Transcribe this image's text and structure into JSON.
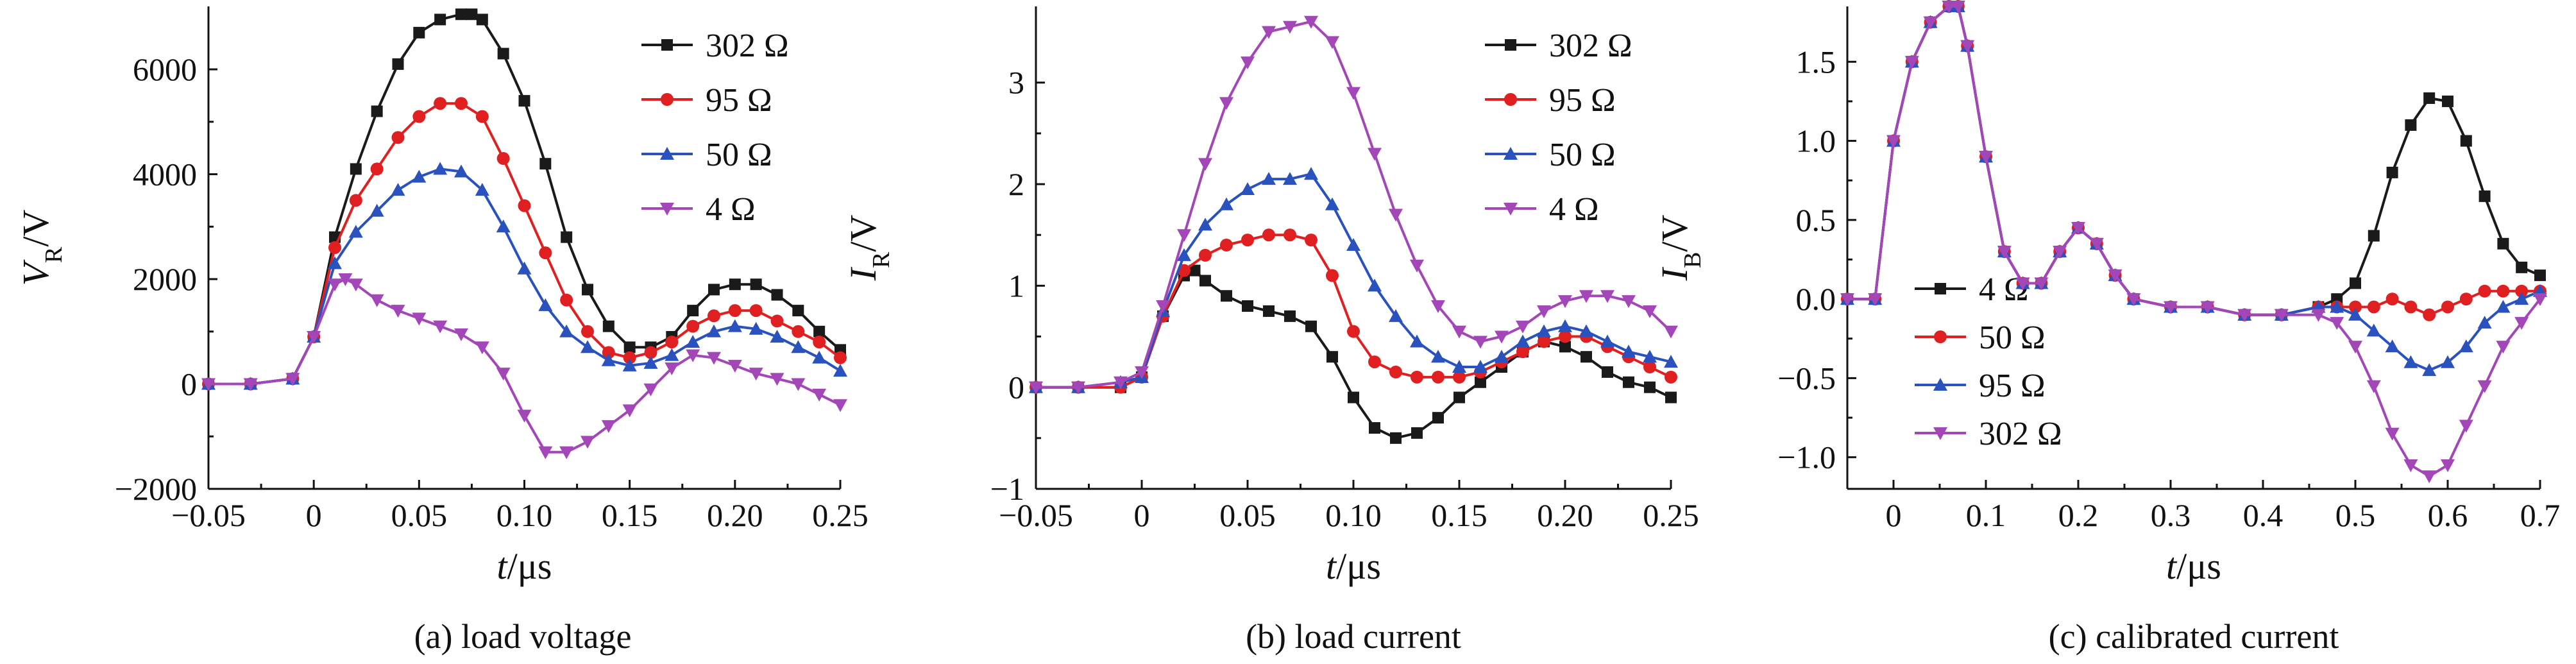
{
  "chart_data": [
    {
      "type": "line",
      "caption": "(a) load voltage",
      "xlabel_main": "t",
      "xlabel_unit": "/μs",
      "ylabel_main": "V",
      "ylabel_sub": "R",
      "ylabel_unit": "/V",
      "xlim": [
        -0.05,
        0.25
      ],
      "ylim": [
        -2000,
        7200
      ],
      "xticks": [
        -0.05,
        0,
        0.05,
        0.1,
        0.15,
        0.2,
        0.25
      ],
      "xtick_labels": [
        "−0.05",
        "0",
        "0.05",
        "0.10",
        "0.15",
        "0.20",
        "0.25"
      ],
      "yticks": [
        -2000,
        0,
        2000,
        4000,
        6000
      ],
      "ytick_labels": [
        "−2000",
        "0",
        "2000",
        "4000",
        "6000"
      ],
      "legend_position": "top-right",
      "series": [
        {
          "name": "302 Ω",
          "color": "#1a1a1a",
          "marker": "square",
          "x": [
            -0.05,
            -0.03,
            -0.01,
            0,
            0.01,
            0.02,
            0.03,
            0.04,
            0.05,
            0.06,
            0.07,
            0.075,
            0.08,
            0.09,
            0.1,
            0.11,
            0.12,
            0.13,
            0.14,
            0.15,
            0.16,
            0.17,
            0.18,
            0.19,
            0.2,
            0.21,
            0.22,
            0.23,
            0.24,
            0.25
          ],
          "y": [
            0,
            0,
            100,
            900,
            2800,
            4100,
            5200,
            6100,
            6700,
            6950,
            7050,
            7050,
            6950,
            6300,
            5400,
            4200,
            2800,
            1800,
            1100,
            700,
            700,
            900,
            1400,
            1800,
            1900,
            1900,
            1700,
            1400,
            1000,
            650
          ]
        },
        {
          "name": "95 Ω",
          "color": "#e02020",
          "marker": "circle",
          "x": [
            -0.05,
            -0.03,
            -0.01,
            0,
            0.01,
            0.02,
            0.03,
            0.04,
            0.05,
            0.06,
            0.07,
            0.08,
            0.09,
            0.1,
            0.11,
            0.12,
            0.13,
            0.14,
            0.15,
            0.16,
            0.17,
            0.18,
            0.19,
            0.2,
            0.21,
            0.22,
            0.23,
            0.24,
            0.25
          ],
          "y": [
            0,
            0,
            100,
            900,
            2600,
            3500,
            4100,
            4700,
            5100,
            5350,
            5350,
            5100,
            4300,
            3400,
            2500,
            1600,
            1000,
            600,
            500,
            600,
            800,
            1100,
            1300,
            1400,
            1400,
            1200,
            1000,
            800,
            500
          ]
        },
        {
          "name": "50 Ω",
          "color": "#2a52be",
          "marker": "triangle-up",
          "x": [
            -0.05,
            -0.03,
            -0.01,
            0,
            0.01,
            0.02,
            0.03,
            0.04,
            0.05,
            0.06,
            0.07,
            0.08,
            0.09,
            0.1,
            0.11,
            0.12,
            0.13,
            0.14,
            0.15,
            0.16,
            0.17,
            0.18,
            0.19,
            0.2,
            0.21,
            0.22,
            0.23,
            0.24,
            0.25
          ],
          "y": [
            0,
            0,
            100,
            900,
            2300,
            2900,
            3300,
            3700,
            3950,
            4100,
            4050,
            3700,
            3000,
            2200,
            1500,
            1000,
            700,
            450,
            350,
            400,
            550,
            800,
            1000,
            1100,
            1050,
            900,
            700,
            500,
            250
          ]
        },
        {
          "name": "4 Ω",
          "color": "#a347b8",
          "marker": "triangle-down",
          "x": [
            -0.05,
            -0.03,
            -0.01,
            0,
            0.01,
            0.015,
            0.02,
            0.03,
            0.04,
            0.05,
            0.06,
            0.07,
            0.08,
            0.09,
            0.1,
            0.11,
            0.12,
            0.13,
            0.14,
            0.15,
            0.16,
            0.17,
            0.18,
            0.19,
            0.2,
            0.21,
            0.22,
            0.23,
            0.24,
            0.25
          ],
          "y": [
            0,
            0,
            100,
            900,
            1900,
            2000,
            1900,
            1600,
            1400,
            1250,
            1100,
            950,
            700,
            200,
            -600,
            -1300,
            -1300,
            -1100,
            -800,
            -500,
            -100,
            300,
            550,
            500,
            350,
            200,
            100,
            0,
            -200,
            -400
          ]
        }
      ]
    },
    {
      "type": "line",
      "caption": "(b) load current",
      "xlabel_main": "t",
      "xlabel_unit": "/μs",
      "ylabel_main": "I",
      "ylabel_sub": "R",
      "ylabel_unit": "/V",
      "xlim": [
        -0.05,
        0.25
      ],
      "ylim": [
        -1,
        3.75
      ],
      "xticks": [
        -0.05,
        0,
        0.05,
        0.1,
        0.15,
        0.2,
        0.25
      ],
      "xtick_labels": [
        "−0.05",
        "0",
        "0.05",
        "0.10",
        "0.15",
        "0.20",
        "0.25"
      ],
      "yticks": [
        -1,
        0,
        1,
        2,
        3
      ],
      "ytick_labels": [
        "−1",
        "0",
        "1",
        "2",
        "3"
      ],
      "legend_position": "top-right",
      "series": [
        {
          "name": "302 Ω",
          "color": "#1a1a1a",
          "marker": "square",
          "x": [
            -0.05,
            -0.03,
            -0.01,
            0,
            0.01,
            0.02,
            0.025,
            0.03,
            0.04,
            0.05,
            0.06,
            0.07,
            0.08,
            0.09,
            0.1,
            0.11,
            0.12,
            0.13,
            0.14,
            0.15,
            0.16,
            0.17,
            0.18,
            0.19,
            0.2,
            0.21,
            0.22,
            0.23,
            0.24,
            0.25
          ],
          "y": [
            0,
            0,
            0,
            0.1,
            0.7,
            1.1,
            1.15,
            1.05,
            0.9,
            0.8,
            0.75,
            0.7,
            0.6,
            0.3,
            -0.1,
            -0.4,
            -0.5,
            -0.45,
            -0.3,
            -0.1,
            0.05,
            0.2,
            0.35,
            0.45,
            0.4,
            0.3,
            0.15,
            0.05,
            0,
            -0.1
          ]
        },
        {
          "name": "95 Ω",
          "color": "#e02020",
          "marker": "circle",
          "x": [
            -0.05,
            -0.03,
            -0.01,
            0,
            0.01,
            0.02,
            0.03,
            0.04,
            0.05,
            0.06,
            0.07,
            0.08,
            0.09,
            0.1,
            0.11,
            0.12,
            0.13,
            0.14,
            0.15,
            0.16,
            0.17,
            0.18,
            0.19,
            0.2,
            0.21,
            0.22,
            0.23,
            0.24,
            0.25
          ],
          "y": [
            0,
            0,
            0,
            0.1,
            0.7,
            1.15,
            1.3,
            1.4,
            1.45,
            1.5,
            1.5,
            1.45,
            1.1,
            0.55,
            0.25,
            0.15,
            0.1,
            0.1,
            0.1,
            0.15,
            0.25,
            0.35,
            0.45,
            0.5,
            0.5,
            0.4,
            0.3,
            0.2,
            0.1
          ]
        },
        {
          "name": "50 Ω",
          "color": "#2a52be",
          "marker": "triangle-up",
          "x": [
            -0.05,
            -0.03,
            -0.01,
            0,
            0.01,
            0.02,
            0.03,
            0.04,
            0.05,
            0.06,
            0.07,
            0.08,
            0.09,
            0.1,
            0.11,
            0.12,
            0.13,
            0.14,
            0.15,
            0.16,
            0.17,
            0.18,
            0.19,
            0.2,
            0.21,
            0.22,
            0.23,
            0.24,
            0.25
          ],
          "y": [
            0,
            0,
            0.05,
            0.1,
            0.75,
            1.3,
            1.6,
            1.8,
            1.95,
            2.05,
            2.05,
            2.1,
            1.8,
            1.4,
            1.0,
            0.7,
            0.45,
            0.3,
            0.2,
            0.2,
            0.3,
            0.45,
            0.55,
            0.6,
            0.55,
            0.45,
            0.35,
            0.3,
            0.25
          ]
        },
        {
          "name": "4 Ω",
          "color": "#a347b8",
          "marker": "triangle-down",
          "x": [
            -0.05,
            -0.03,
            -0.01,
            0,
            0.01,
            0.02,
            0.03,
            0.04,
            0.05,
            0.06,
            0.07,
            0.08,
            0.09,
            0.1,
            0.11,
            0.12,
            0.13,
            0.14,
            0.15,
            0.16,
            0.17,
            0.18,
            0.19,
            0.2,
            0.21,
            0.22,
            0.23,
            0.24,
            0.25
          ],
          "y": [
            0,
            0,
            0.05,
            0.15,
            0.8,
            1.5,
            2.2,
            2.8,
            3.2,
            3.5,
            3.55,
            3.6,
            3.4,
            2.9,
            2.3,
            1.7,
            1.2,
            0.8,
            0.55,
            0.45,
            0.5,
            0.6,
            0.75,
            0.85,
            0.9,
            0.9,
            0.85,
            0.75,
            0.55
          ]
        }
      ]
    },
    {
      "type": "line",
      "caption": "(c) calibrated current",
      "xlabel_main": "t",
      "xlabel_unit": "/μs",
      "ylabel_main": "I",
      "ylabel_sub": "B",
      "ylabel_unit": "/V",
      "xlim": [
        -0.05,
        0.7
      ],
      "ylim": [
        -1.2,
        1.85
      ],
      "xticks": [
        0,
        0.1,
        0.2,
        0.3,
        0.4,
        0.5,
        0.6,
        0.7
      ],
      "xtick_labels": [
        "0",
        "0.1",
        "0.2",
        "0.3",
        "0.4",
        "0.5",
        "0.6",
        "0.7"
      ],
      "yticks": [
        -1.0,
        -0.5,
        0,
        0.5,
        1.0,
        1.5
      ],
      "ytick_labels": [
        "−1.0",
        "−0.5",
        "0.0",
        "0.5",
        "1.0",
        "1.5"
      ],
      "legend_position": "bottom-left",
      "series": [
        {
          "name": "4 Ω",
          "color": "#1a1a1a",
          "marker": "square",
          "x": [
            -0.05,
            -0.02,
            0,
            0.02,
            0.04,
            0.06,
            0.07,
            0.08,
            0.1,
            0.12,
            0.14,
            0.16,
            0.18,
            0.2,
            0.22,
            0.24,
            0.26,
            0.3,
            0.34,
            0.38,
            0.42,
            0.46,
            0.48,
            0.5,
            0.52,
            0.54,
            0.56,
            0.58,
            0.6,
            0.62,
            0.64,
            0.66,
            0.68,
            0.7
          ],
          "y": [
            0,
            0,
            1.0,
            1.5,
            1.75,
            1.85,
            1.85,
            1.6,
            0.9,
            0.3,
            0.1,
            0.1,
            0.3,
            0.45,
            0.35,
            0.15,
            0.0,
            -0.05,
            -0.05,
            -0.1,
            -0.1,
            -0.05,
            0.0,
            0.1,
            0.4,
            0.8,
            1.1,
            1.27,
            1.25,
            1.0,
            0.65,
            0.35,
            0.2,
            0.15
          ]
        },
        {
          "name": "50 Ω",
          "color": "#e02020",
          "marker": "circle",
          "x": [
            -0.05,
            -0.02,
            0,
            0.02,
            0.04,
            0.06,
            0.07,
            0.08,
            0.1,
            0.12,
            0.14,
            0.16,
            0.18,
            0.2,
            0.22,
            0.24,
            0.26,
            0.3,
            0.34,
            0.38,
            0.42,
            0.46,
            0.48,
            0.5,
            0.52,
            0.54,
            0.56,
            0.58,
            0.6,
            0.62,
            0.64,
            0.66,
            0.68,
            0.7
          ],
          "y": [
            0,
            0,
            1.0,
            1.5,
            1.75,
            1.85,
            1.85,
            1.6,
            0.9,
            0.3,
            0.1,
            0.1,
            0.3,
            0.45,
            0.35,
            0.15,
            0.0,
            -0.05,
            -0.05,
            -0.1,
            -0.1,
            -0.05,
            -0.05,
            -0.05,
            -0.05,
            0.0,
            -0.05,
            -0.1,
            -0.05,
            0.0,
            0.05,
            0.05,
            0.05,
            0.05
          ]
        },
        {
          "name": "95 Ω",
          "color": "#2a52be",
          "marker": "triangle-up",
          "x": [
            -0.05,
            -0.02,
            0,
            0.02,
            0.04,
            0.06,
            0.07,
            0.08,
            0.1,
            0.12,
            0.14,
            0.16,
            0.18,
            0.2,
            0.22,
            0.24,
            0.26,
            0.3,
            0.34,
            0.38,
            0.42,
            0.46,
            0.48,
            0.5,
            0.52,
            0.54,
            0.56,
            0.58,
            0.6,
            0.62,
            0.64,
            0.66,
            0.68,
            0.7
          ],
          "y": [
            0,
            0,
            1.0,
            1.5,
            1.75,
            1.85,
            1.85,
            1.6,
            0.9,
            0.3,
            0.1,
            0.1,
            0.3,
            0.45,
            0.35,
            0.15,
            0.0,
            -0.05,
            -0.05,
            -0.1,
            -0.1,
            -0.05,
            -0.05,
            -0.1,
            -0.2,
            -0.3,
            -0.4,
            -0.45,
            -0.4,
            -0.3,
            -0.15,
            -0.05,
            0.0,
            0.05
          ]
        },
        {
          "name": "302 Ω",
          "color": "#a347b8",
          "marker": "triangle-down",
          "x": [
            -0.05,
            -0.02,
            0,
            0.02,
            0.04,
            0.06,
            0.07,
            0.08,
            0.1,
            0.12,
            0.14,
            0.16,
            0.18,
            0.2,
            0.22,
            0.24,
            0.26,
            0.3,
            0.34,
            0.38,
            0.42,
            0.46,
            0.48,
            0.5,
            0.52,
            0.54,
            0.56,
            0.58,
            0.6,
            0.62,
            0.64,
            0.66,
            0.68,
            0.7
          ],
          "y": [
            0,
            0,
            1.0,
            1.5,
            1.75,
            1.85,
            1.85,
            1.6,
            0.9,
            0.3,
            0.1,
            0.1,
            0.3,
            0.45,
            0.35,
            0.15,
            0.0,
            -0.05,
            -0.05,
            -0.1,
            -0.1,
            -0.1,
            -0.15,
            -0.3,
            -0.55,
            -0.85,
            -1.05,
            -1.12,
            -1.05,
            -0.8,
            -0.55,
            -0.3,
            -0.15,
            0.0
          ]
        }
      ]
    }
  ]
}
